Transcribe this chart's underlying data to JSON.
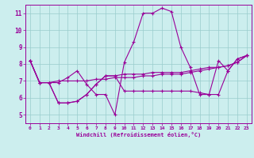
{
  "xlabel": "Windchill (Refroidissement éolien,°C)",
  "hours": [
    0,
    1,
    2,
    3,
    4,
    5,
    6,
    7,
    8,
    9,
    10,
    11,
    12,
    13,
    14,
    15,
    16,
    17,
    18,
    19,
    20,
    21,
    22,
    23
  ],
  "line1": [
    8.2,
    6.9,
    6.9,
    6.9,
    7.2,
    7.6,
    6.8,
    6.2,
    6.2,
    5.0,
    8.1,
    9.3,
    11.0,
    11.0,
    11.3,
    11.1,
    9.0,
    7.8,
    6.2,
    6.2,
    8.2,
    7.6,
    8.3,
    8.5
  ],
  "line2": [
    8.2,
    6.9,
    6.9,
    7.0,
    7.0,
    7.0,
    7.0,
    7.1,
    7.1,
    7.2,
    7.2,
    7.2,
    7.3,
    7.3,
    7.4,
    7.4,
    7.4,
    7.5,
    7.6,
    7.7,
    7.8,
    7.9,
    8.1,
    8.5
  ],
  "line3": [
    8.2,
    6.9,
    6.9,
    5.7,
    5.7,
    5.8,
    6.2,
    6.8,
    7.3,
    7.3,
    6.4,
    6.4,
    6.4,
    6.4,
    6.4,
    6.4,
    6.4,
    6.4,
    6.3,
    6.2,
    6.2,
    7.6,
    8.3,
    8.5
  ],
  "line4": [
    8.2,
    6.9,
    6.9,
    5.7,
    5.7,
    5.8,
    6.2,
    6.8,
    7.3,
    7.3,
    7.4,
    7.4,
    7.4,
    7.5,
    7.5,
    7.5,
    7.5,
    7.6,
    7.7,
    7.8,
    7.8,
    7.9,
    8.1,
    8.5
  ],
  "color": "#990099",
  "bg_color": "#cceeee",
  "grid_color": "#99cccc",
  "ylim": [
    4.5,
    11.5
  ],
  "xlim": [
    -0.5,
    23.5
  ],
  "yticks": [
    5,
    6,
    7,
    8,
    9,
    10,
    11
  ],
  "xticks": [
    0,
    1,
    2,
    3,
    4,
    5,
    6,
    7,
    8,
    9,
    10,
    11,
    12,
    13,
    14,
    15,
    16,
    17,
    18,
    19,
    20,
    21,
    22,
    23
  ]
}
